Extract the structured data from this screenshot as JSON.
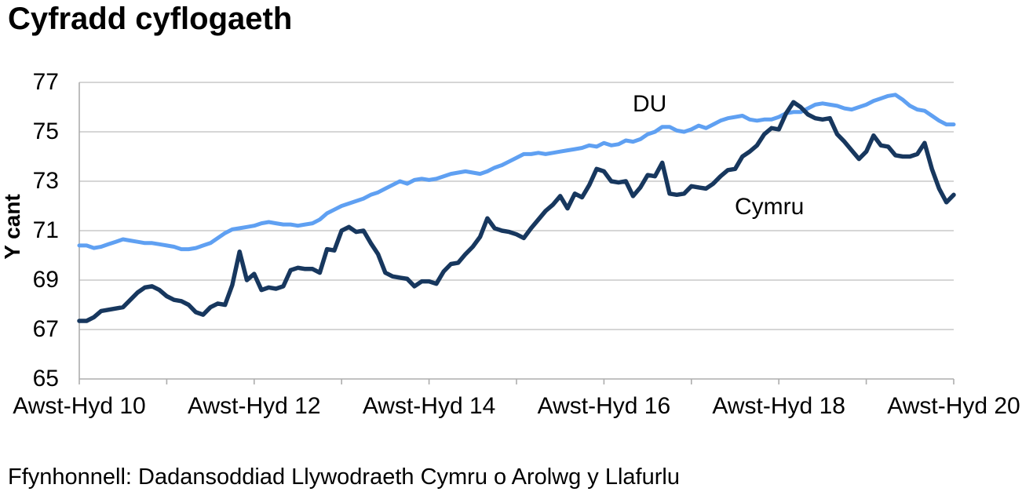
{
  "title": "Cyfradd cyflogaeth",
  "source": "Ffynhonnell: Dadansoddiad Llywodraeth Cymru o Arolwg y Llafurlu",
  "colors": {
    "du_line": "#5FA0F2",
    "cymru_line": "#17375E",
    "grid": "#C9C9C9",
    "axis": "#ADADAD",
    "text": "#000000",
    "background": "#FFFFFF"
  },
  "chart_data": {
    "type": "line",
    "title": "Cyfradd cyflogaeth",
    "xlabel": "",
    "ylabel": "Y cant",
    "ylim": [
      65,
      77
    ],
    "yticks": [
      77,
      75,
      73,
      71,
      69,
      67,
      65
    ],
    "grid": "horizontal",
    "legend": "inline-labels",
    "xtick_labels": [
      "Awst-Hyd 10",
      "Awst-Hyd 12",
      "Awst-Hyd 14",
      "Awst-Hyd 16",
      "Awst-Hyd 18",
      "Awst-Hyd 20"
    ],
    "minor_xticks_every_label_interval": 2,
    "series": [
      {
        "name": "DU",
        "color": "#5FA0F2",
        "values": [
          70.4,
          70.4,
          70.3,
          70.35,
          70.45,
          70.55,
          70.65,
          70.6,
          70.55,
          70.5,
          70.5,
          70.45,
          70.4,
          70.35,
          70.25,
          70.25,
          70.3,
          70.4,
          70.5,
          70.7,
          70.9,
          71.05,
          71.1,
          71.15,
          71.2,
          71.3,
          71.35,
          71.3,
          71.25,
          71.25,
          71.2,
          71.25,
          71.3,
          71.45,
          71.7,
          71.85,
          72.0,
          72.1,
          72.2,
          72.3,
          72.45,
          72.55,
          72.7,
          72.85,
          73.0,
          72.9,
          73.05,
          73.1,
          73.05,
          73.1,
          73.2,
          73.3,
          73.35,
          73.4,
          73.35,
          73.3,
          73.4,
          73.55,
          73.65,
          73.8,
          73.95,
          74.1,
          74.1,
          74.15,
          74.1,
          74.15,
          74.2,
          74.25,
          74.3,
          74.35,
          74.45,
          74.4,
          74.55,
          74.45,
          74.5,
          74.65,
          74.6,
          74.7,
          74.9,
          75.0,
          75.2,
          75.2,
          75.05,
          75.0,
          75.1,
          75.25,
          75.15,
          75.3,
          75.45,
          75.55,
          75.6,
          75.65,
          75.5,
          75.45,
          75.5,
          75.5,
          75.6,
          75.75,
          75.8,
          75.8,
          75.95,
          76.1,
          76.15,
          76.1,
          76.05,
          75.95,
          75.9,
          76.0,
          76.1,
          76.25,
          76.35,
          76.45,
          76.5,
          76.3,
          76.05,
          75.9,
          75.85,
          75.65,
          75.45,
          75.3,
          75.3
        ]
      },
      {
        "name": "Cymru",
        "color": "#17375E",
        "values": [
          67.35,
          67.35,
          67.5,
          67.75,
          67.8,
          67.85,
          67.9,
          68.2,
          68.5,
          68.7,
          68.75,
          68.6,
          68.35,
          68.2,
          68.15,
          68.0,
          67.7,
          67.6,
          67.9,
          68.05,
          68.0,
          68.8,
          70.15,
          69.0,
          69.25,
          68.6,
          68.7,
          68.65,
          68.75,
          69.4,
          69.5,
          69.45,
          69.45,
          69.3,
          70.25,
          70.2,
          71.0,
          71.15,
          70.95,
          71.0,
          70.5,
          70.05,
          69.3,
          69.15,
          69.1,
          69.05,
          68.75,
          68.95,
          68.95,
          68.85,
          69.35,
          69.65,
          69.7,
          70.05,
          70.35,
          70.75,
          71.5,
          71.1,
          71.0,
          70.95,
          70.85,
          70.7,
          71.1,
          71.45,
          71.8,
          72.05,
          72.4,
          71.9,
          72.5,
          72.35,
          72.85,
          73.5,
          73.4,
          73.0,
          72.95,
          73.0,
          72.4,
          72.75,
          73.25,
          73.2,
          73.75,
          72.5,
          72.45,
          72.5,
          72.8,
          72.75,
          72.7,
          72.9,
          73.2,
          73.45,
          73.5,
          74.0,
          74.2,
          74.45,
          74.9,
          75.15,
          75.1,
          75.75,
          76.2,
          76.0,
          75.7,
          75.55,
          75.5,
          75.55,
          74.9,
          74.6,
          74.25,
          73.9,
          74.2,
          74.85,
          74.45,
          74.4,
          74.05,
          74.0,
          74.0,
          74.1,
          74.55,
          73.5,
          72.7,
          72.15,
          72.45
        ]
      }
    ]
  }
}
